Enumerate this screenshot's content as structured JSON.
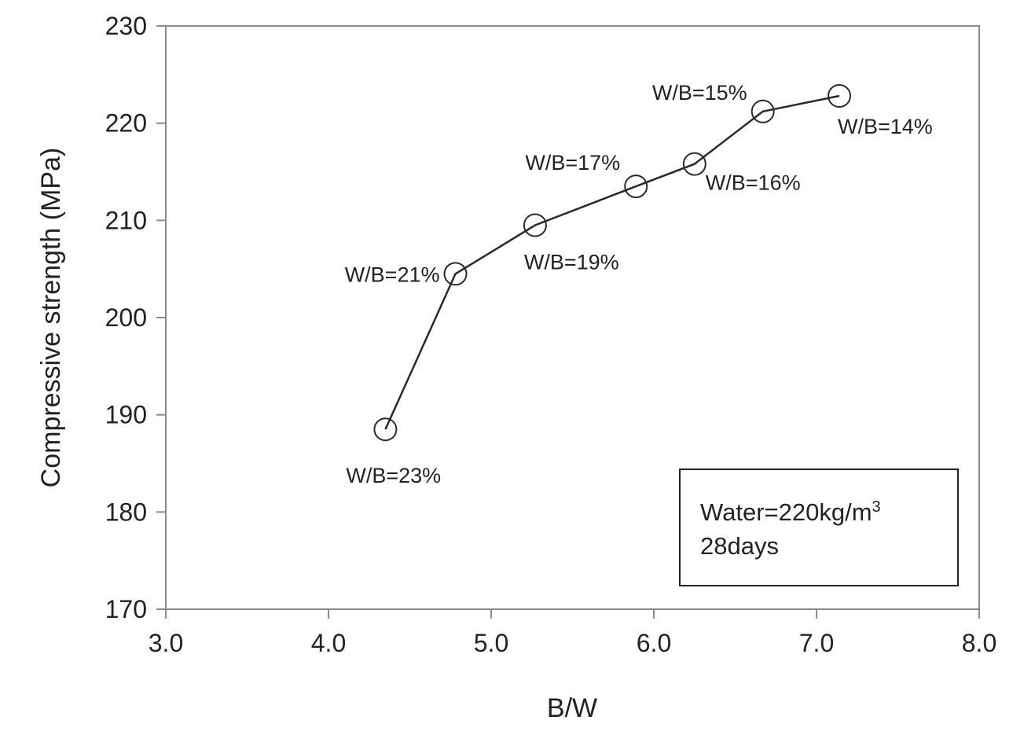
{
  "chart_data": {
    "type": "line",
    "title": "",
    "xlabel": "B/W",
    "ylabel": "Compressive strength (MPa)",
    "xlim": [
      3.0,
      8.0
    ],
    "ylim": [
      170,
      230
    ],
    "x_ticks": [
      "3.0",
      "4.0",
      "5.0",
      "6.0",
      "7.0",
      "8.0"
    ],
    "y_ticks": [
      "170",
      "180",
      "190",
      "200",
      "210",
      "220",
      "230"
    ],
    "grid": false,
    "legend": null,
    "series": [
      {
        "name": "Compressive strength",
        "marker": "open-circle",
        "x": [
          4.35,
          4.78,
          5.27,
          5.89,
          6.25,
          6.67,
          7.14
        ],
        "y": [
          188.5,
          204.5,
          209.5,
          213.5,
          215.8,
          221.2,
          222.8
        ],
        "labels": [
          "W/B=23%",
          "W/B=21%",
          "W/B=19%",
          "W/B=17%",
          "W/B=16%",
          "W/B=15%",
          "W/B=14%"
        ]
      }
    ],
    "annotation": {
      "line1": "Water=220kg/m",
      "line1_superscript": "3",
      "line2": "28days",
      "placement": "bottom-right"
    }
  }
}
